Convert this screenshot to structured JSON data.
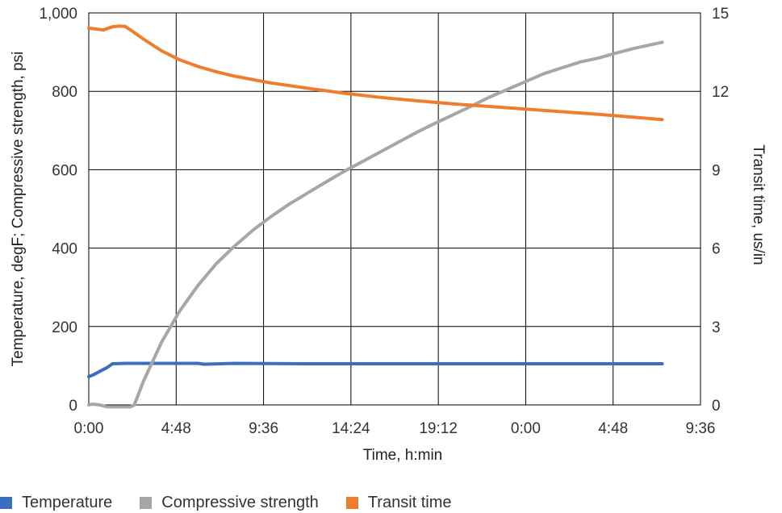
{
  "chart_data": {
    "type": "line",
    "xlabel": "Time, h:min",
    "ylabel_left": "Temperature, degF; Compressive strength, psi",
    "ylabel_right": "Transit time, us/in",
    "x_unit": "hours",
    "x_ticks": [
      {
        "value": 0,
        "label": "0:00"
      },
      {
        "value": 4.8,
        "label": "4:48"
      },
      {
        "value": 9.6,
        "label": "9:36"
      },
      {
        "value": 14.4,
        "label": "14:24"
      },
      {
        "value": 19.2,
        "label": "19:12"
      },
      {
        "value": 24.0,
        "label": "0:00"
      },
      {
        "value": 28.8,
        "label": "4:48"
      },
      {
        "value": 33.6,
        "label": "9:36"
      }
    ],
    "xlim": [
      0,
      33.6
    ],
    "ylim_left": [
      0,
      1000
    ],
    "y_ticks_left": [
      {
        "value": 0,
        "label": "0"
      },
      {
        "value": 200,
        "label": "200"
      },
      {
        "value": 400,
        "label": "400"
      },
      {
        "value": 600,
        "label": "600"
      },
      {
        "value": 800,
        "label": "800"
      },
      {
        "value": 1000,
        "label": "1,000"
      }
    ],
    "ylim_right": [
      0,
      15
    ],
    "y_ticks_right": [
      {
        "value": 0,
        "label": "0"
      },
      {
        "value": 3,
        "label": "3"
      },
      {
        "value": 6,
        "label": "6"
      },
      {
        "value": 9,
        "label": "9"
      },
      {
        "value": 12,
        "label": "12"
      },
      {
        "value": 15,
        "label": "15"
      }
    ],
    "grid": true,
    "legend_position": "bottom-left",
    "series": [
      {
        "name": "Temperature",
        "axis": "left",
        "color": "#3a6fbf",
        "x": [
          0,
          0.3,
          0.7,
          1.0,
          1.3,
          2.0,
          4.0,
          6.0,
          6.3,
          8.0,
          12.0,
          16.0,
          20.0,
          24.0,
          28.0,
          31.5
        ],
        "y": [
          72,
          78,
          88,
          95,
          105,
          106,
          106,
          106,
          104,
          106,
          105,
          105,
          105,
          105,
          105,
          105
        ]
      },
      {
        "name": "Compressive strength",
        "axis": "left",
        "color": "#a6a6a6",
        "x": [
          0,
          0.2,
          0.6,
          1.0,
          2.3,
          2.5,
          3.0,
          3.5,
          4.0,
          5.0,
          6.0,
          7.0,
          8.0,
          9.0,
          10.0,
          11.0,
          12.0,
          13.0,
          14.0,
          15.0,
          16.0,
          17.0,
          18.0,
          19.0,
          20.0,
          21.0,
          22.0,
          23.0,
          24.0,
          25.0,
          26.0,
          27.0,
          28.0,
          29.0,
          30.0,
          31.5
        ],
        "y": [
          0,
          2,
          0,
          -5,
          -5,
          0,
          60,
          110,
          160,
          240,
          305,
          360,
          405,
          445,
          480,
          512,
          540,
          568,
          595,
          620,
          645,
          670,
          695,
          718,
          740,
          762,
          785,
          805,
          825,
          845,
          860,
          875,
          885,
          898,
          910,
          925
        ]
      },
      {
        "name": "Transit time",
        "axis": "right",
        "color": "#ee7d2e",
        "x": [
          0,
          0.8,
          1.3,
          1.7,
          2.0,
          2.4,
          3.0,
          4.0,
          5.0,
          6.0,
          7.0,
          8.0,
          9.0,
          10.0,
          12.0,
          14.0,
          16.0,
          18.0,
          20.0,
          22.0,
          24.0,
          26.0,
          28.0,
          31.5
        ],
        "y": [
          14.42,
          14.35,
          14.47,
          14.5,
          14.48,
          14.3,
          14.0,
          13.55,
          13.2,
          12.95,
          12.75,
          12.58,
          12.45,
          12.32,
          12.12,
          11.93,
          11.77,
          11.64,
          11.52,
          11.42,
          11.32,
          11.22,
          11.12,
          10.92
        ]
      }
    ]
  }
}
